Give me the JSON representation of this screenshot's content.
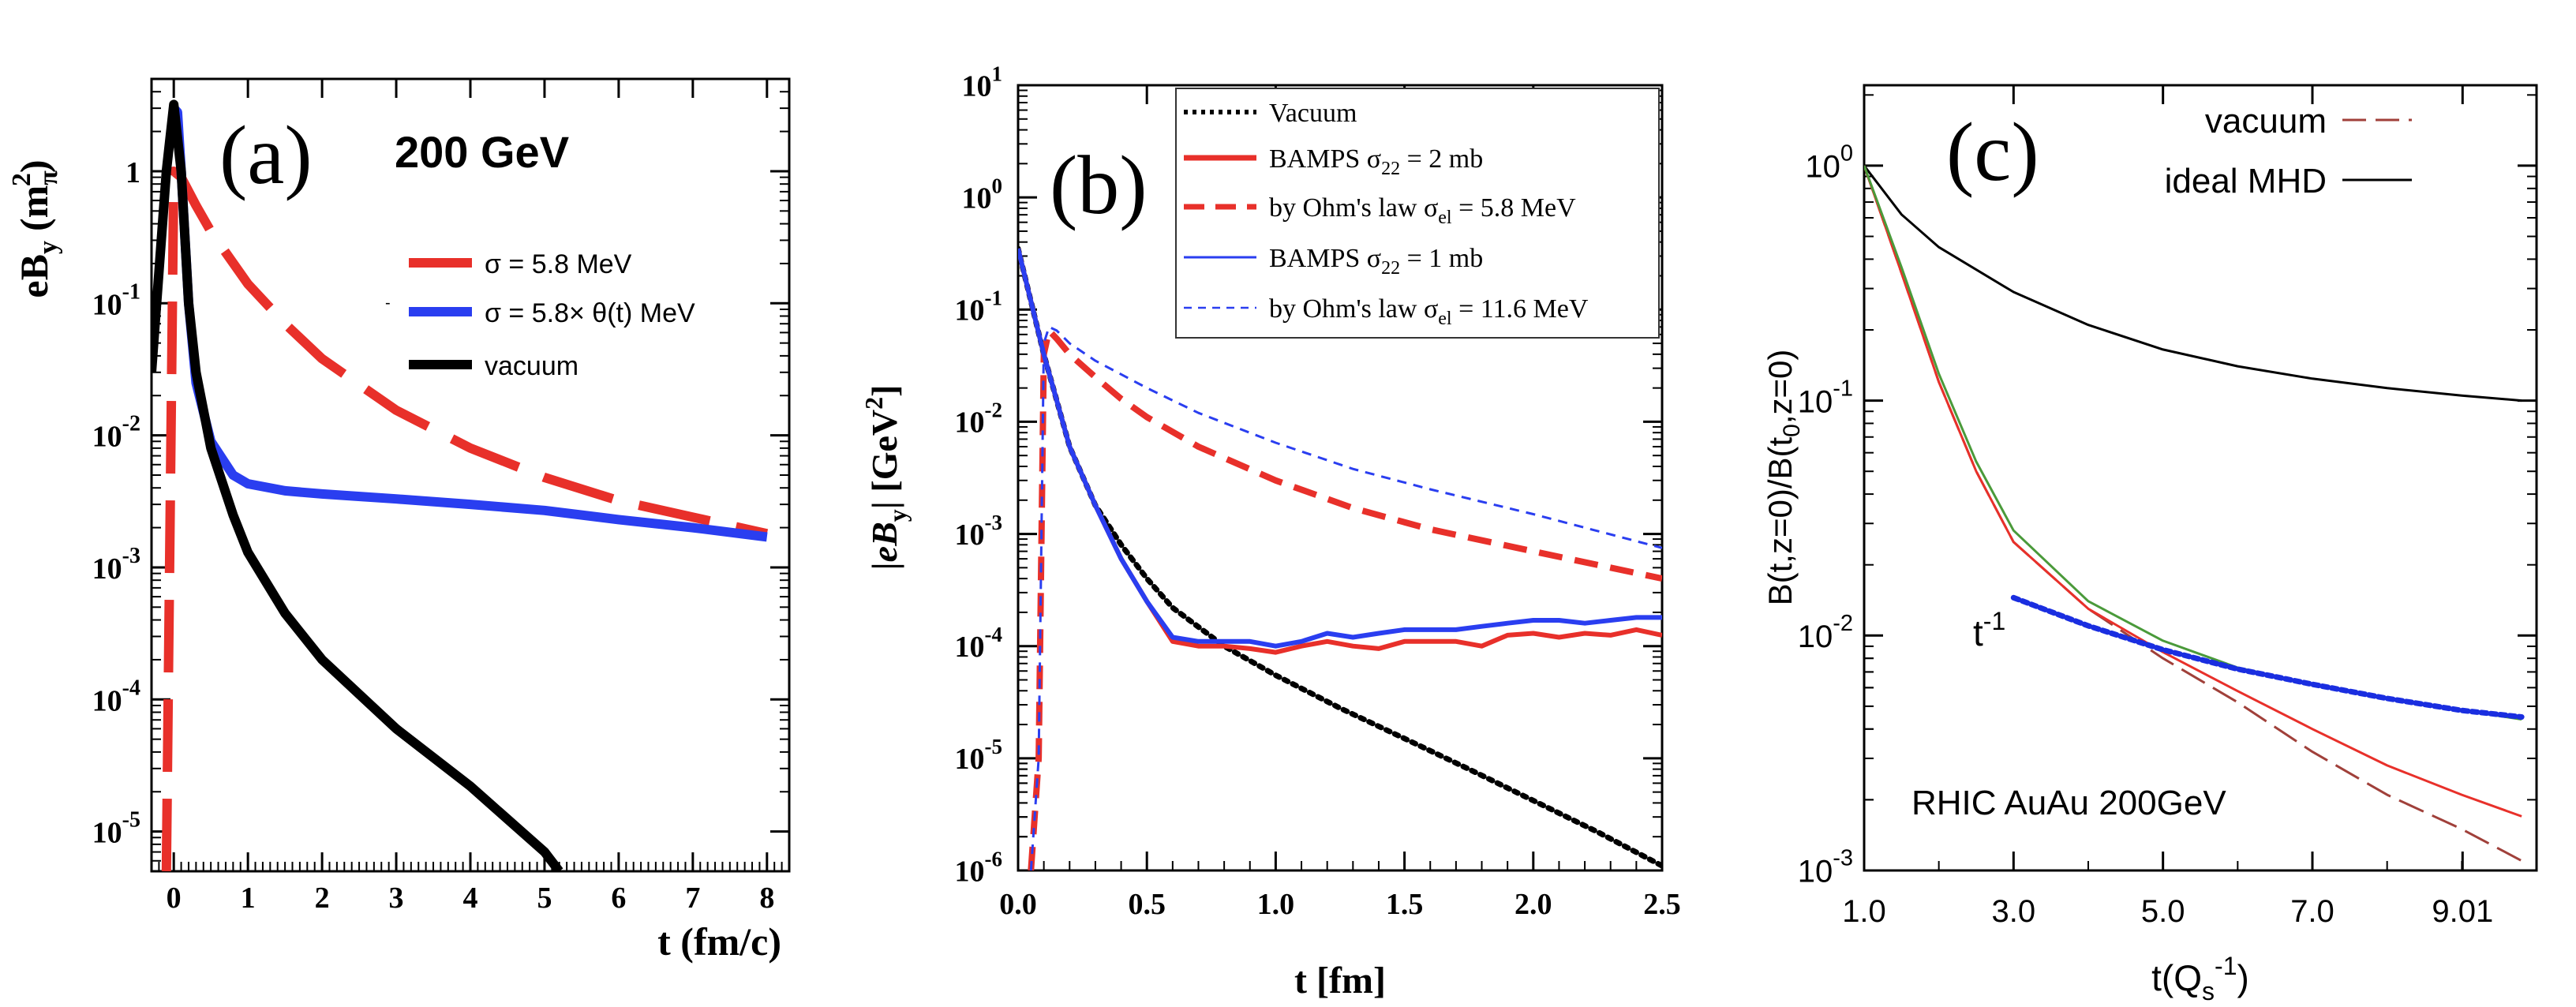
{
  "chart_data": [
    {
      "type": "line",
      "panel_label": "(a)",
      "title": "200 GeV",
      "xlabel": "t (fm/c)",
      "ylabel": "eB_y (m_π^2)",
      "ylabel_main": "eB",
      "ylabel_sub": "y",
      "ylabel_unit_open": "(m",
      "ylabel_unit_sub": "π",
      "ylabel_unit_sup": "2",
      "ylabel_unit_close": ")",
      "yscale": "log",
      "xlim": [
        -0.3,
        8.3
      ],
      "ylim": [
        5e-06,
        5
      ],
      "x_ticks": [
        0,
        1,
        2,
        3,
        4,
        5,
        6,
        7,
        8
      ],
      "x_tick_labels": [
        "0",
        "1",
        "2",
        "3",
        "4",
        "5",
        "6",
        "7",
        "8"
      ],
      "y_ticks": [
        1e-05,
        0.0001,
        0.001,
        0.01,
        0.1,
        1
      ],
      "y_tick_labels": [
        {
          "base": "10",
          "exp": "-5"
        },
        {
          "base": "10",
          "exp": "-4"
        },
        {
          "base": "10",
          "exp": "-3"
        },
        {
          "base": "10",
          "exp": "-2"
        },
        {
          "base": "10",
          "exp": "-1"
        },
        {
          "base": "1",
          "exp": ""
        }
      ],
      "legend_position": "right",
      "stray_mark": "-",
      "series": [
        {
          "name": "σ = 5.8 MeV",
          "color": "#e8302a",
          "style": "dashed",
          "x": [
            -0.1,
            0.0,
            0.1,
            0.3,
            0.5,
            1.0,
            1.5,
            2.0,
            3.0,
            4.0,
            5.0,
            6.0,
            7.0,
            8.0
          ],
          "y": [
            5e-06,
            1.0,
            0.9,
            0.55,
            0.35,
            0.14,
            0.07,
            0.038,
            0.0155,
            0.008,
            0.0048,
            0.0032,
            0.0024,
            0.0018
          ]
        },
        {
          "name": "σ = 5.8× θ(t) MeV",
          "color": "#2a3ef0",
          "style": "solid",
          "x": [
            0.0,
            0.05,
            0.1,
            0.2,
            0.3,
            0.5,
            0.8,
            1.0,
            1.5,
            2.0,
            3.0,
            4.0,
            5.0,
            6.0,
            7.0,
            8.0
          ],
          "y": [
            3.0,
            2.8,
            1.0,
            0.1,
            0.025,
            0.009,
            0.005,
            0.0043,
            0.0038,
            0.0036,
            0.0033,
            0.003,
            0.0027,
            0.0023,
            0.002,
            0.0017
          ]
        },
        {
          "name": "vacuum",
          "color": "#000000",
          "style": "solid",
          "x": [
            -0.3,
            -0.1,
            0.0,
            0.1,
            0.2,
            0.3,
            0.5,
            0.8,
            1.0,
            1.5,
            2.0,
            3.0,
            4.0,
            5.0,
            5.2
          ],
          "y": [
            0.03,
            1.0,
            3.2,
            1.0,
            0.1,
            0.03,
            0.008,
            0.0025,
            0.0013,
            0.00045,
            0.0002,
            6e-05,
            2.2e-05,
            7e-06,
            5e-06
          ]
        }
      ]
    },
    {
      "type": "line",
      "panel_label": "(b)",
      "xlabel": "t [fm]",
      "ylabel": "|eB_y| [GeV^2]",
      "ylabel_open": "|",
      "ylabel_main": "eB",
      "ylabel_sub": "y",
      "ylabel_unit_open": "| [GeV",
      "ylabel_unit_sup": "2",
      "ylabel_unit_close": "]",
      "yscale": "log",
      "xlim": [
        0,
        2.5
      ],
      "ylim": [
        1e-06,
        10
      ],
      "x_ticks": [
        0,
        0.5,
        1.0,
        1.5,
        2.0,
        2.5
      ],
      "x_tick_labels": [
        "0.0",
        "0.5",
        "1.0",
        "1.5",
        "2.0",
        "2.5"
      ],
      "y_ticks": [
        1e-06,
        1e-05,
        0.0001,
        0.001,
        0.01,
        0.1,
        1,
        10
      ],
      "y_tick_labels": [
        {
          "base": "10",
          "exp": "-6"
        },
        {
          "base": "10",
          "exp": "-5"
        },
        {
          "base": "10",
          "exp": "-4"
        },
        {
          "base": "10",
          "exp": "-3"
        },
        {
          "base": "10",
          "exp": "-2"
        },
        {
          "base": "10",
          "exp": "-1"
        },
        {
          "base": "10",
          "exp": "0"
        },
        {
          "base": "10",
          "exp": "1"
        }
      ],
      "legend_position": "top-right",
      "series": [
        {
          "name": "Vacuum",
          "label_parts": [
            "Vacuum"
          ],
          "color": "#000000",
          "style": "dotted",
          "x": [
            0.0,
            0.1,
            0.2,
            0.3,
            0.4,
            0.5,
            0.6,
            0.8,
            1.0,
            1.25,
            1.5,
            1.75,
            2.0,
            2.25,
            2.5
          ],
          "y": [
            0.35,
            0.04,
            0.006,
            0.0018,
            0.0008,
            0.0004,
            0.00022,
            0.0001,
            5.5e-05,
            2.8e-05,
            1.5e-05,
            8e-06,
            4.2e-06,
            2.2e-06,
            1.1e-06
          ]
        },
        {
          "name": "BAMPS σ22 = 2 mb",
          "label_parts": [
            "BAMPS σ",
            "22",
            " = 2 mb"
          ],
          "color": "#e8302a",
          "style": "solid",
          "x": [
            0.0,
            0.1,
            0.2,
            0.3,
            0.4,
            0.5,
            0.6,
            0.7,
            0.8,
            0.9,
            1.0,
            1.1,
            1.2,
            1.3,
            1.4,
            1.5,
            1.6,
            1.7,
            1.8,
            1.9,
            2.0,
            2.1,
            2.2,
            2.3,
            2.4,
            2.5
          ],
          "y": [
            0.35,
            0.04,
            0.006,
            0.0018,
            0.0006,
            0.00025,
            0.00011,
            0.0001,
            0.0001,
            9.5e-05,
            8.8e-05,
            0.0001,
            0.00011,
            0.0001,
            9.5e-05,
            0.00011,
            0.00011,
            0.00011,
            0.0001,
            0.000125,
            0.00013,
            0.00012,
            0.00013,
            0.000125,
            0.00014,
            0.000125
          ]
        },
        {
          "name": "by Ohm's law σel = 5.8 MeV",
          "label_parts": [
            "by Ohm's law  σ",
            "el",
            " = 5.8 MeV"
          ],
          "color": "#e8302a",
          "style": "dashed",
          "x": [
            0.05,
            0.08,
            0.1,
            0.12,
            0.15,
            0.2,
            0.3,
            0.4,
            0.5,
            0.7,
            1.0,
            1.3,
            1.6,
            2.0,
            2.5
          ],
          "y": [
            1e-06,
            1e-05,
            0.04,
            0.065,
            0.055,
            0.04,
            0.025,
            0.016,
            0.011,
            0.006,
            0.003,
            0.0017,
            0.0011,
            0.0007,
            0.0004
          ]
        },
        {
          "name": "BAMPS σ22 = 1 mb",
          "label_parts": [
            "BAMPS σ",
            "22",
            " = 1 mb"
          ],
          "color": "#2a3ef0",
          "style": "solid",
          "x": [
            0.0,
            0.1,
            0.2,
            0.3,
            0.4,
            0.5,
            0.6,
            0.7,
            0.8,
            0.9,
            1.0,
            1.1,
            1.2,
            1.3,
            1.4,
            1.5,
            1.6,
            1.7,
            1.8,
            1.9,
            2.0,
            2.1,
            2.2,
            2.3,
            2.4,
            2.5
          ],
          "y": [
            0.35,
            0.04,
            0.006,
            0.0018,
            0.0006,
            0.00025,
            0.00012,
            0.00011,
            0.00011,
            0.00011,
            0.0001,
            0.00011,
            0.00013,
            0.00012,
            0.00013,
            0.00014,
            0.00014,
            0.00014,
            0.00015,
            0.00016,
            0.00017,
            0.00017,
            0.00016,
            0.00017,
            0.00018,
            0.00018
          ]
        },
        {
          "name": "by Ohm's law σel = 11.6 MeV",
          "label_parts": [
            "by Ohm's law  σ",
            "el",
            " = 11.6 MeV"
          ],
          "color": "#2a3ef0",
          "style": "dashed-thin",
          "x": [
            0.05,
            0.08,
            0.1,
            0.12,
            0.15,
            0.2,
            0.3,
            0.5,
            0.7,
            1.0,
            1.3,
            1.6,
            2.0,
            2.5
          ],
          "y": [
            1e-06,
            1e-05,
            0.05,
            0.07,
            0.065,
            0.05,
            0.035,
            0.02,
            0.012,
            0.0065,
            0.0038,
            0.0025,
            0.0015,
            0.00075
          ]
        }
      ]
    },
    {
      "type": "line",
      "panel_label": "(c)",
      "xlabel": "t(Q_s^-1)",
      "xlabel_main": "t(Q",
      "xlabel_sub": "s",
      "xlabel_sup": "-1",
      "xlabel_close": ")",
      "ylabel": "B(t,z=0)/B(t_0,z=0)",
      "ylabel_a": "B(t,z=0)/B(t",
      "ylabel_sub": "0",
      "ylabel_b": ",z=0)",
      "yscale": "log",
      "xlim": [
        1.0,
        10.0
      ],
      "ylim": [
        0.001,
        2.2
      ],
      "x_ticks": [
        1.0,
        3.0,
        5.0,
        7.0,
        9.01
      ],
      "x_tick_labels": [
        "1.0",
        "3.0",
        "5.0",
        "7.0",
        "9.01"
      ],
      "y_ticks": [
        0.001,
        0.01,
        0.1,
        1
      ],
      "y_tick_labels": [
        {
          "base": "10",
          "exp": "-3"
        },
        {
          "base": "10",
          "exp": "-2"
        },
        {
          "base": "10",
          "exp": "-1"
        },
        {
          "base": "10",
          "exp": "0"
        }
      ],
      "legend_position": "top-right",
      "annotations": [
        {
          "text": "RHIC AuAu 200GeV",
          "position": "bottom-left"
        },
        {
          "text_base": "t",
          "text_exp": "-1",
          "position": "left-middle"
        }
      ],
      "series": [
        {
          "name": "vacuum",
          "in_legend": true,
          "color": "#a0403a",
          "style": "dashed",
          "x": [
            1.0,
            1.5,
            2.0,
            2.5,
            3.0,
            4.0,
            5.0,
            6.0,
            7.0,
            8.0,
            9.0,
            9.8
          ],
          "y": [
            1.0,
            0.35,
            0.12,
            0.05,
            0.025,
            0.013,
            0.008,
            0.0052,
            0.0032,
            0.0021,
            0.0015,
            0.0011
          ]
        },
        {
          "name": "ideal MHD",
          "in_legend": true,
          "color": "#000000",
          "style": "solid",
          "x": [
            1.0,
            1.5,
            2.0,
            3.0,
            4.0,
            5.0,
            6.0,
            7.0,
            8.0,
            9.0,
            9.8
          ],
          "y": [
            1.0,
            0.62,
            0.45,
            0.29,
            0.21,
            0.165,
            0.14,
            0.124,
            0.113,
            0.105,
            0.1
          ]
        },
        {
          "name": "red solid",
          "in_legend": false,
          "color": "#e8302a",
          "style": "solid",
          "x": [
            1.0,
            1.5,
            2.0,
            2.5,
            3.0,
            4.0,
            5.0,
            6.0,
            7.0,
            8.0,
            9.0,
            9.8
          ],
          "y": [
            1.0,
            0.35,
            0.12,
            0.05,
            0.025,
            0.013,
            0.0085,
            0.0058,
            0.004,
            0.0028,
            0.0021,
            0.0017
          ]
        },
        {
          "name": "green solid",
          "in_legend": false,
          "color": "#4a9a3a",
          "style": "solid",
          "x": [
            1.0,
            1.5,
            2.0,
            2.5,
            3.0,
            4.0,
            5.0,
            6.0,
            7.0,
            8.0,
            9.0,
            9.8
          ],
          "y": [
            1.0,
            0.37,
            0.13,
            0.055,
            0.028,
            0.014,
            0.0095,
            0.0073,
            0.0062,
            0.0054,
            0.0048,
            0.0044
          ]
        },
        {
          "name": "t^-1 fit",
          "in_legend": false,
          "color": "#1a2ee0",
          "style": "dotted",
          "x": [
            3.0,
            4.0,
            5.0,
            6.0,
            7.0,
            8.0,
            9.0,
            9.8
          ],
          "y": [
            0.0145,
            0.011,
            0.0087,
            0.0072,
            0.0062,
            0.0054,
            0.0048,
            0.0045
          ]
        }
      ]
    }
  ]
}
